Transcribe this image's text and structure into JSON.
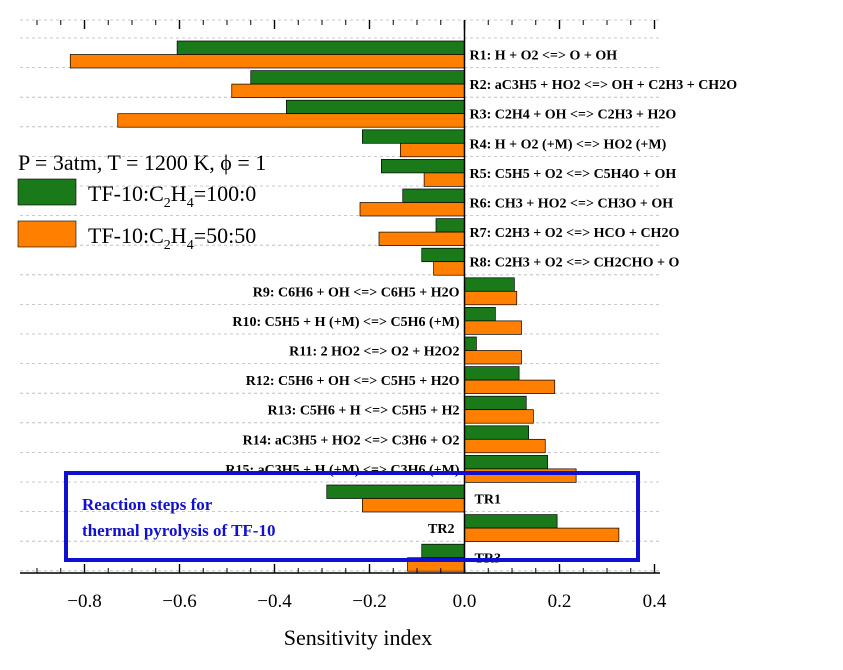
{
  "chart_data": {
    "type": "bar",
    "orientation": "horizontal",
    "categories": [
      "R1: H + O2 <=> O + OH",
      "R2: aC3H5 + HO2 <=> OH + C2H3 + CH2O",
      "R3: C2H4 + OH <=> C2H3 + H2O",
      "R4: H + O2 (+M) <=> HO2 (+M)",
      "R5: C5H5 + O2 <=> C5H4O + OH",
      "R6: CH3 + HO2 <=> CH3O + OH",
      "R7: C2H3 + O2 <=> HCO + CH2O",
      "R8: C2H3 + O2 <=> CH2CHO + O",
      "R9: C6H6 + OH <=> C6H5 + H2O",
      "R10: C5H5 + H (+M) <=> C5H6 (+M)",
      "R11: 2 HO2 <=> O2 + H2O2",
      "R12: C5H6 + OH <=> C5H5 + H2O",
      "R13: C5H6 + H <=> C5H5 + H2",
      "R14: aC3H5 + HO2 <=> C3H6 + O2",
      "R15: aC3H5 + H (+M) <=> C3H6 (+M)",
      "TR1",
      "TR2",
      "TR3"
    ],
    "series": [
      {
        "name": "TF-10:C2H4=100:0",
        "color": "#1a7a1a",
        "values": [
          -0.605,
          -0.45,
          -0.375,
          -0.215,
          -0.175,
          -0.13,
          -0.06,
          -0.09,
          0.105,
          0.065,
          0.025,
          0.115,
          0.13,
          0.135,
          0.175,
          -0.29,
          0.195,
          -0.09
        ]
      },
      {
        "name": "TF-10:C2H4=50:50",
        "color": "#ff8000",
        "values": [
          -0.83,
          -0.49,
          -0.73,
          -0.135,
          -0.085,
          -0.22,
          -0.18,
          -0.065,
          0.11,
          0.12,
          0.12,
          0.19,
          0.145,
          0.17,
          0.235,
          -0.215,
          0.325,
          -0.12
        ]
      }
    ],
    "xlabel": "Sensitivity index",
    "ylabel": "",
    "xlim": [
      -0.98,
      0.44
    ],
    "xticks": [
      "−0.8",
      "−0.6",
      "−0.4",
      "−0.2",
      "0.0",
      "0.2",
      "0.4"
    ],
    "xtick_values": [
      -0.8,
      -0.6,
      -0.4,
      -0.2,
      0.0,
      0.2,
      0.4
    ],
    "grid": true,
    "condition": "P = 3atm, T = 1200 K, ϕ = 1",
    "legend": {
      "placement": "left",
      "entries": [
        {
          "prefix": "TF-10:C",
          "sub1": "2",
          "mid": "H",
          "sub2": "4",
          "suffix": "=100:0"
        },
        {
          "prefix": "TF-10:C",
          "sub1": "2",
          "mid": "H",
          "sub2": "4",
          "suffix": "=50:50"
        }
      ]
    },
    "annotation": {
      "lines": [
        "Reaction steps for",
        "thermal pyrolysis of TF-10"
      ],
      "color": "#1010d0"
    }
  }
}
